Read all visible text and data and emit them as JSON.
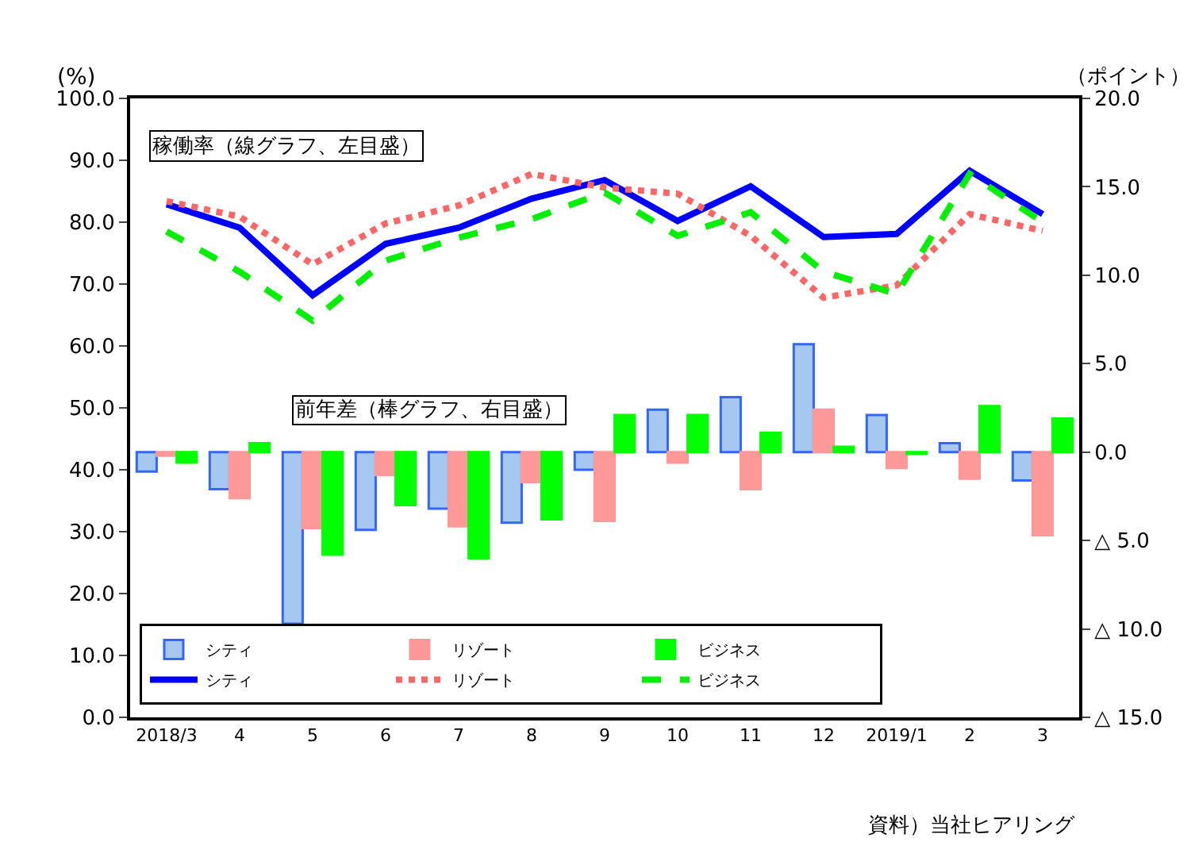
{
  "chart_data": {
    "type": "bar",
    "ylabel": "(%)",
    "y2label": "（ポイント）",
    "categories": [
      "2018/3",
      "4",
      "5",
      "6",
      "7",
      "8",
      "9",
      "10",
      "11",
      "12",
      "2019/1",
      "2",
      "3"
    ],
    "series": [
      {
        "name": "シティ",
        "axis": "y2",
        "color": "#a6c8f0",
        "values": [
          -1.1,
          -2.1,
          -9.7,
          -4.4,
          -3.2,
          -4.0,
          -1.0,
          2.4,
          3.1,
          6.1,
          2.1,
          0.5,
          -1.6
        ]
      },
      {
        "name": "リゾート",
        "axis": "y2",
        "color": "#ff9999",
        "values": [
          -0.2,
          -2.6,
          -4.3,
          -1.3,
          -4.2,
          -1.7,
          -3.9,
          -0.6,
          -2.1,
          2.4,
          -0.9,
          -1.5,
          -4.7
        ]
      },
      {
        "name": "ビジネス",
        "axis": "y2",
        "color": "#00ff00",
        "values": [
          -0.6,
          0.5,
          -5.8,
          -3.0,
          -6.0,
          -3.8,
          2.1,
          2.1,
          1.1,
          0.3,
          -0.1,
          2.6,
          1.9
        ]
      },
      {
        "name": "シティ",
        "type": "line",
        "color": "#0000ff",
        "line_style": "solid",
        "values": [
          82.9,
          79.1,
          68.2,
          76.5,
          79.1,
          83.8,
          86.8,
          80.2,
          85.8,
          77.6,
          78.1,
          88.3,
          81.3
        ]
      },
      {
        "name": "リゾート",
        "type": "line",
        "color": "#ff6666",
        "line_style": "dotted",
        "values": [
          83.4,
          80.9,
          73.2,
          79.8,
          82.7,
          87.8,
          85.6,
          84.6,
          77.8,
          67.8,
          69.8,
          81.3,
          78.6
        ]
      },
      {
        "name": "ビジネス",
        "type": "line",
        "color": "#00ee00",
        "line_style": "dashed",
        "values": [
          78.5,
          72.0,
          64.1,
          73.8,
          77.5,
          80.5,
          84.8,
          77.8,
          81.6,
          72.0,
          68.4,
          87.8,
          80.0
        ]
      }
    ],
    "ylim": [
      0,
      100
    ],
    "yticks": [
      {
        "value": 0,
        "label": "0.0"
      },
      {
        "value": 10,
        "label": "10.0"
      },
      {
        "value": 20,
        "label": "20.0"
      },
      {
        "value": 30,
        "label": "30.0"
      },
      {
        "value": 40,
        "label": "40.0"
      },
      {
        "value": 50,
        "label": "50.0"
      },
      {
        "value": 60,
        "label": "60.0"
      },
      {
        "value": 70,
        "label": "70.0"
      },
      {
        "value": 80,
        "label": "80.0"
      },
      {
        "value": 90,
        "label": "90.0"
      },
      {
        "value": 100,
        "label": "100.0"
      }
    ],
    "y2lim": [
      -15,
      20
    ],
    "y2ticks": [
      {
        "value": -15,
        "label": "△ 15.0"
      },
      {
        "value": -10,
        "label": "△ 10.0"
      },
      {
        "value": -5,
        "label": "△ 5.0"
      },
      {
        "value": 0,
        "label": "0.0"
      },
      {
        "value": 5,
        "label": "5.0"
      },
      {
        "value": 10,
        "label": "10.0"
      },
      {
        "value": 15,
        "label": "15.0"
      },
      {
        "value": 20,
        "label": "20.0"
      }
    ],
    "legend": "bottom left",
    "marker": "none",
    "annotations": [
      "稼働率（線グラフ、左目盛）",
      "前年差（棒グラフ、右目盛）",
      "資料）当社ヒアリング"
    ]
  }
}
